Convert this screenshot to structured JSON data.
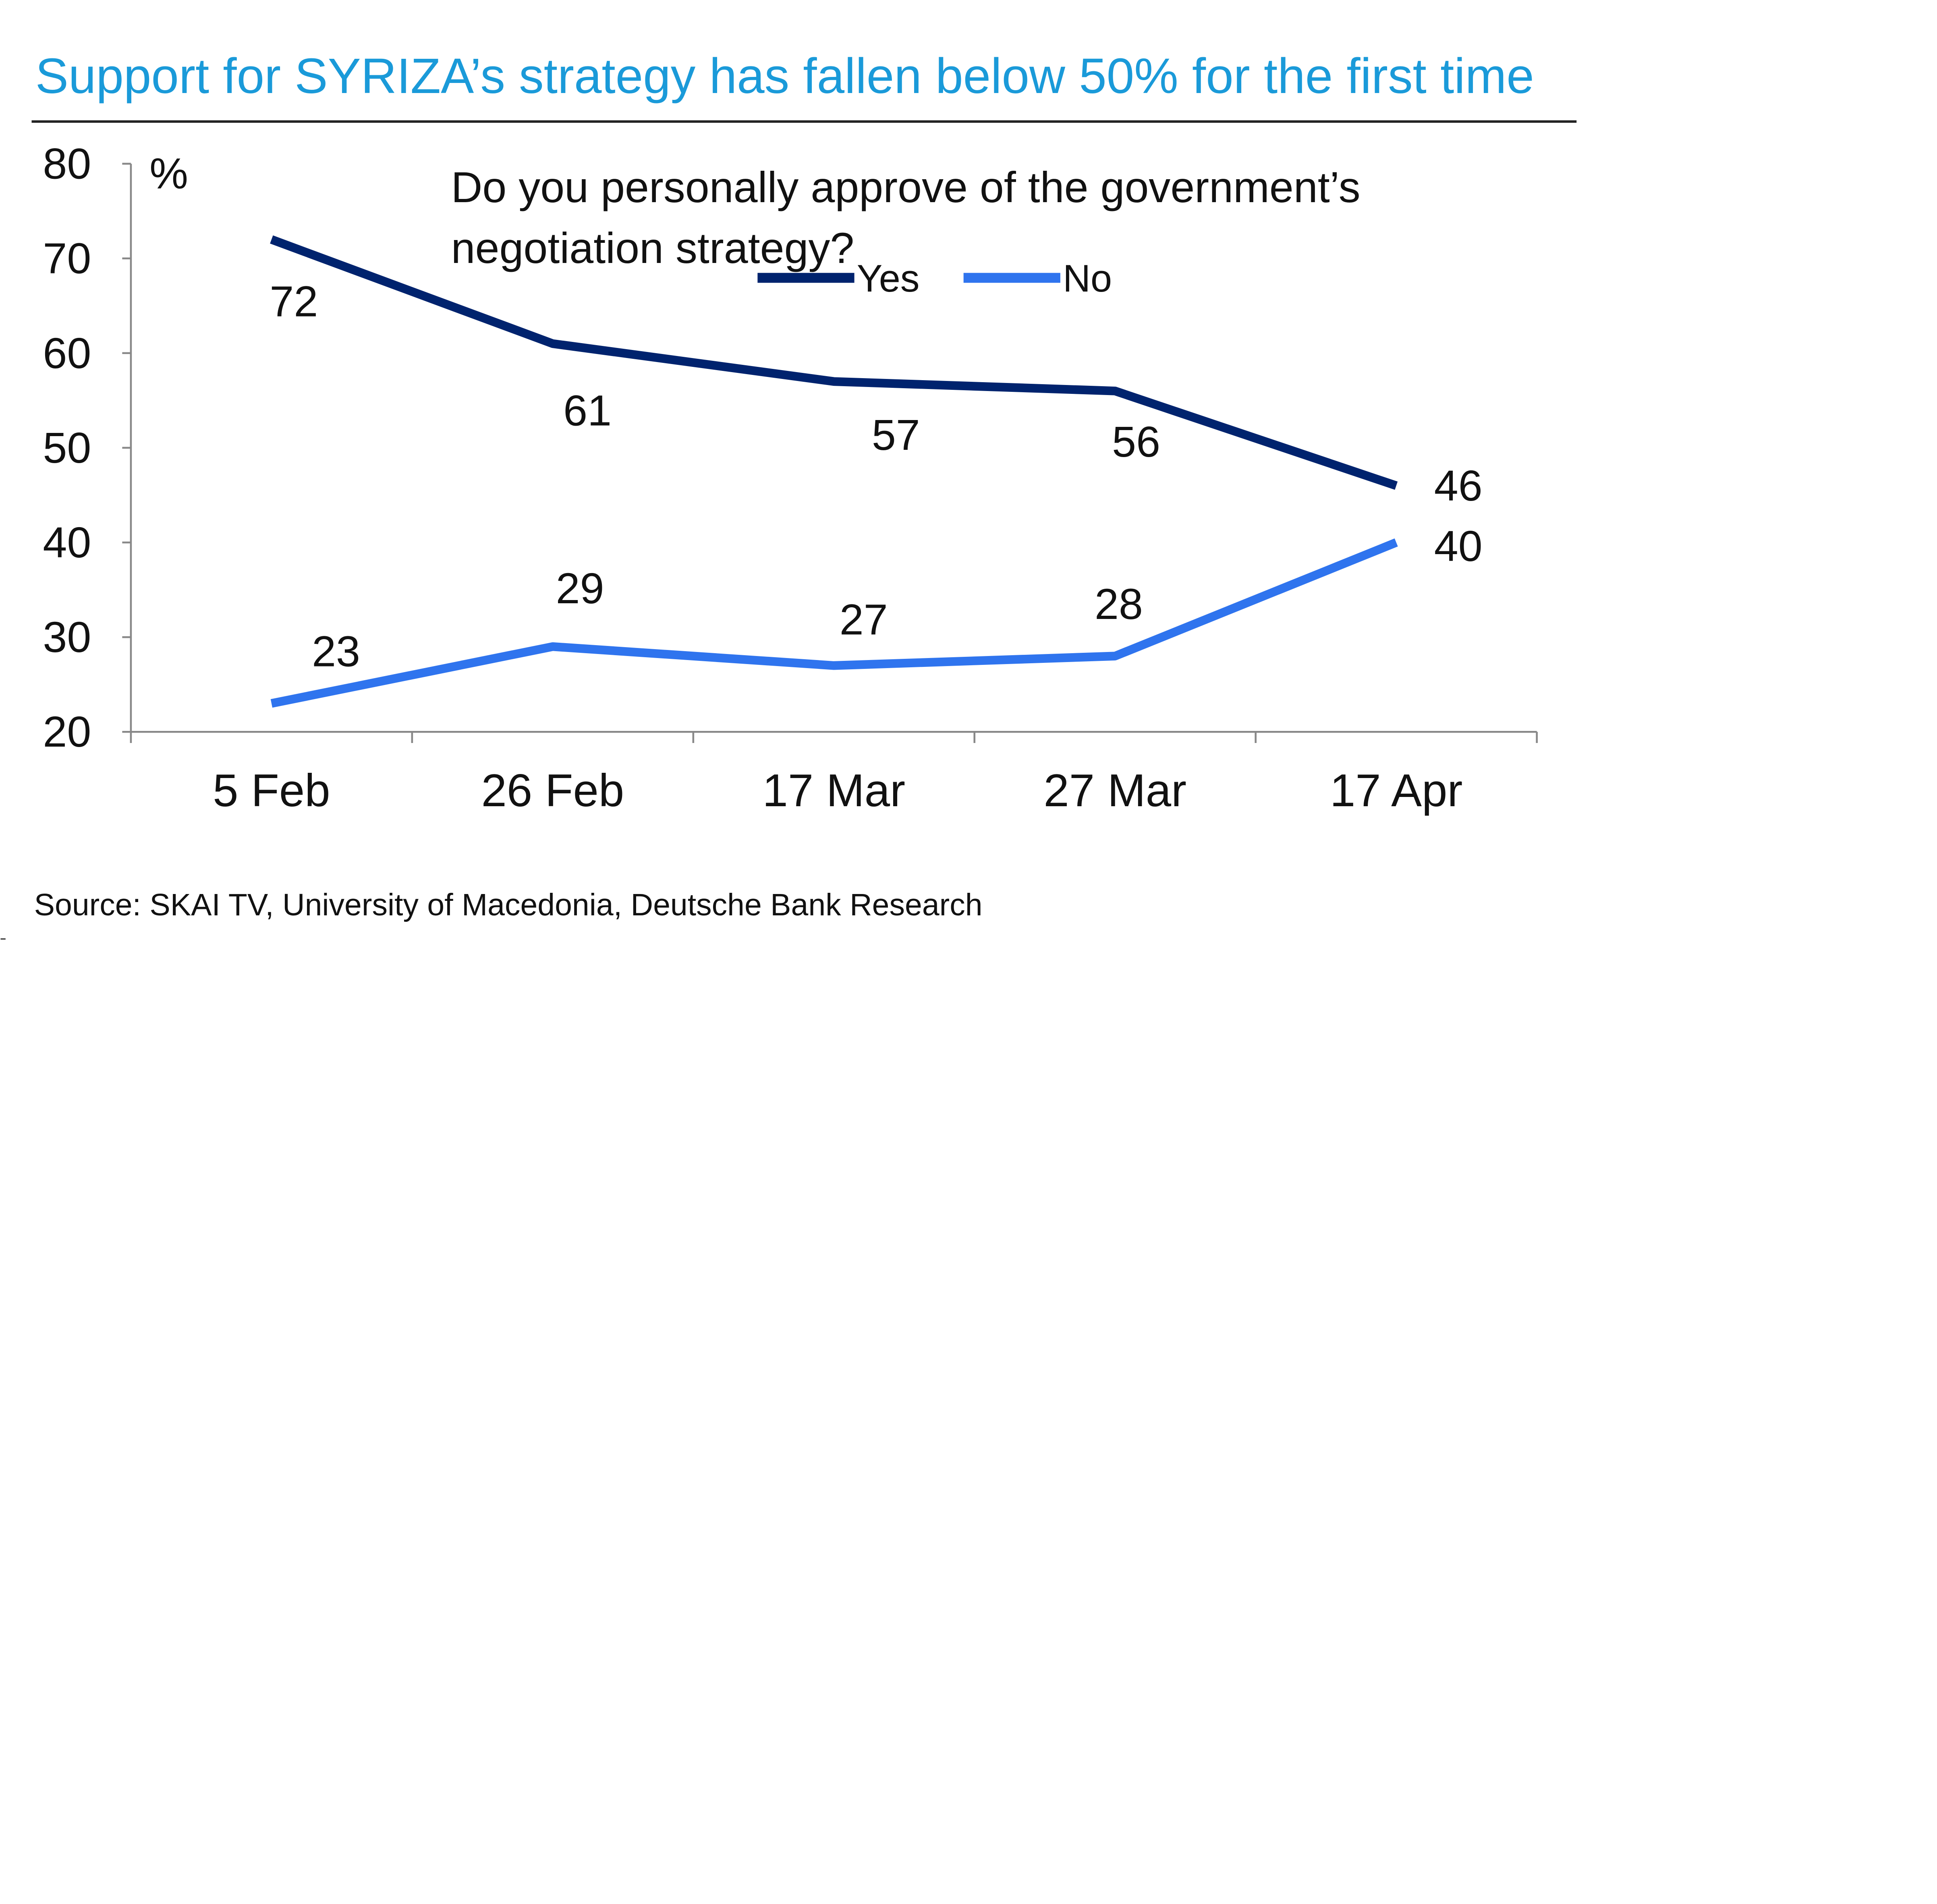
{
  "chart_data": {
    "type": "line",
    "title": "Support for SYRIZA’s strategy has fallen below 50% for the first time",
    "subtitle": "Do you personally approve of the government’s negotiation strategy?",
    "subtitle_lines": [
      "Do you personally approve of the government’s",
      "negotiation strategy?"
    ],
    "ylabel": "%",
    "xlabel": "",
    "categories": [
      "5 Feb",
      "26 Feb",
      "17 Mar",
      "27 Mar",
      "17 Apr"
    ],
    "ylim": [
      20,
      80
    ],
    "yticks": [
      20,
      30,
      40,
      50,
      60,
      70,
      80
    ],
    "grid": false,
    "legend_position": "top-center",
    "series": [
      {
        "name": "Yes",
        "color": "#00236e",
        "values": [
          72,
          61,
          57,
          56,
          46
        ]
      },
      {
        "name": "No",
        "color": "#2f74ee",
        "values": [
          23,
          29,
          27,
          28,
          40
        ]
      }
    ],
    "source": "Source: SKAI TV, University of Macedonia, Deutsche Bank Research"
  }
}
